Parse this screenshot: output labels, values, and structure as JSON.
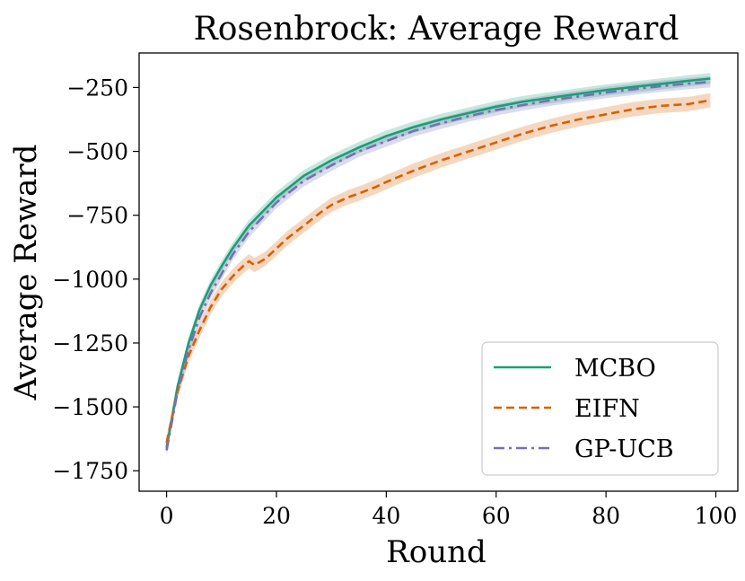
{
  "chart_data": {
    "type": "line",
    "title": "Rosenbrock: Average Reward",
    "xlabel": "Round",
    "ylabel": "Average Reward",
    "xlim": [
      -5,
      104
    ],
    "ylim": [
      -1830,
      -115
    ],
    "xticks": [
      0,
      20,
      40,
      60,
      80,
      100
    ],
    "xtick_labels": [
      "0",
      "20",
      "40",
      "60",
      "80",
      "100"
    ],
    "yticks": [
      -250,
      -500,
      -750,
      -1000,
      -1250,
      -1500,
      -1750
    ],
    "ytick_labels": [
      "−250",
      "−500",
      "−750",
      "−1000",
      "−1250",
      "−1500",
      "−1750"
    ],
    "legend_position": "lower-right",
    "series": [
      {
        "name": "MCBO",
        "color": "#1b9e77",
        "dash": "solid",
        "band": 22,
        "x": [
          0,
          2,
          4,
          6,
          8,
          10,
          12,
          15,
          20,
          25,
          30,
          35,
          40,
          45,
          50,
          55,
          60,
          65,
          70,
          75,
          80,
          85,
          90,
          95,
          99
        ],
        "values": [
          -1660,
          -1420,
          -1250,
          -1120,
          -1025,
          -950,
          -880,
          -790,
          -680,
          -595,
          -535,
          -485,
          -440,
          -405,
          -375,
          -350,
          -325,
          -305,
          -290,
          -275,
          -260,
          -248,
          -236,
          -224,
          -215
        ]
      },
      {
        "name": "EIFN",
        "color": "#d95f02",
        "dash": "dashed",
        "band": 28,
        "x": [
          0,
          2,
          4,
          6,
          8,
          10,
          12,
          13,
          14,
          15,
          16,
          18,
          20,
          22,
          25,
          28,
          30,
          33,
          35,
          38,
          40,
          45,
          50,
          55,
          60,
          65,
          70,
          75,
          80,
          85,
          90,
          95,
          99
        ],
        "values": [
          -1640,
          -1440,
          -1300,
          -1200,
          -1110,
          -1040,
          -990,
          -968,
          -948,
          -930,
          -945,
          -920,
          -880,
          -840,
          -790,
          -740,
          -710,
          -680,
          -665,
          -640,
          -620,
          -575,
          -535,
          -500,
          -465,
          -430,
          -400,
          -375,
          -355,
          -335,
          -322,
          -315,
          -300
        ]
      },
      {
        "name": "GP-UCB",
        "color": "#7570b3",
        "dash": "dashdot",
        "band": 22,
        "x": [
          0,
          2,
          4,
          6,
          8,
          10,
          12,
          15,
          20,
          25,
          30,
          35,
          40,
          45,
          50,
          55,
          60,
          65,
          70,
          75,
          80,
          85,
          90,
          95,
          99
        ],
        "values": [
          -1670,
          -1440,
          -1275,
          -1150,
          -1055,
          -980,
          -905,
          -815,
          -700,
          -615,
          -555,
          -500,
          -460,
          -420,
          -390,
          -362,
          -338,
          -318,
          -300,
          -285,
          -270,
          -257,
          -245,
          -235,
          -228
        ]
      }
    ]
  }
}
